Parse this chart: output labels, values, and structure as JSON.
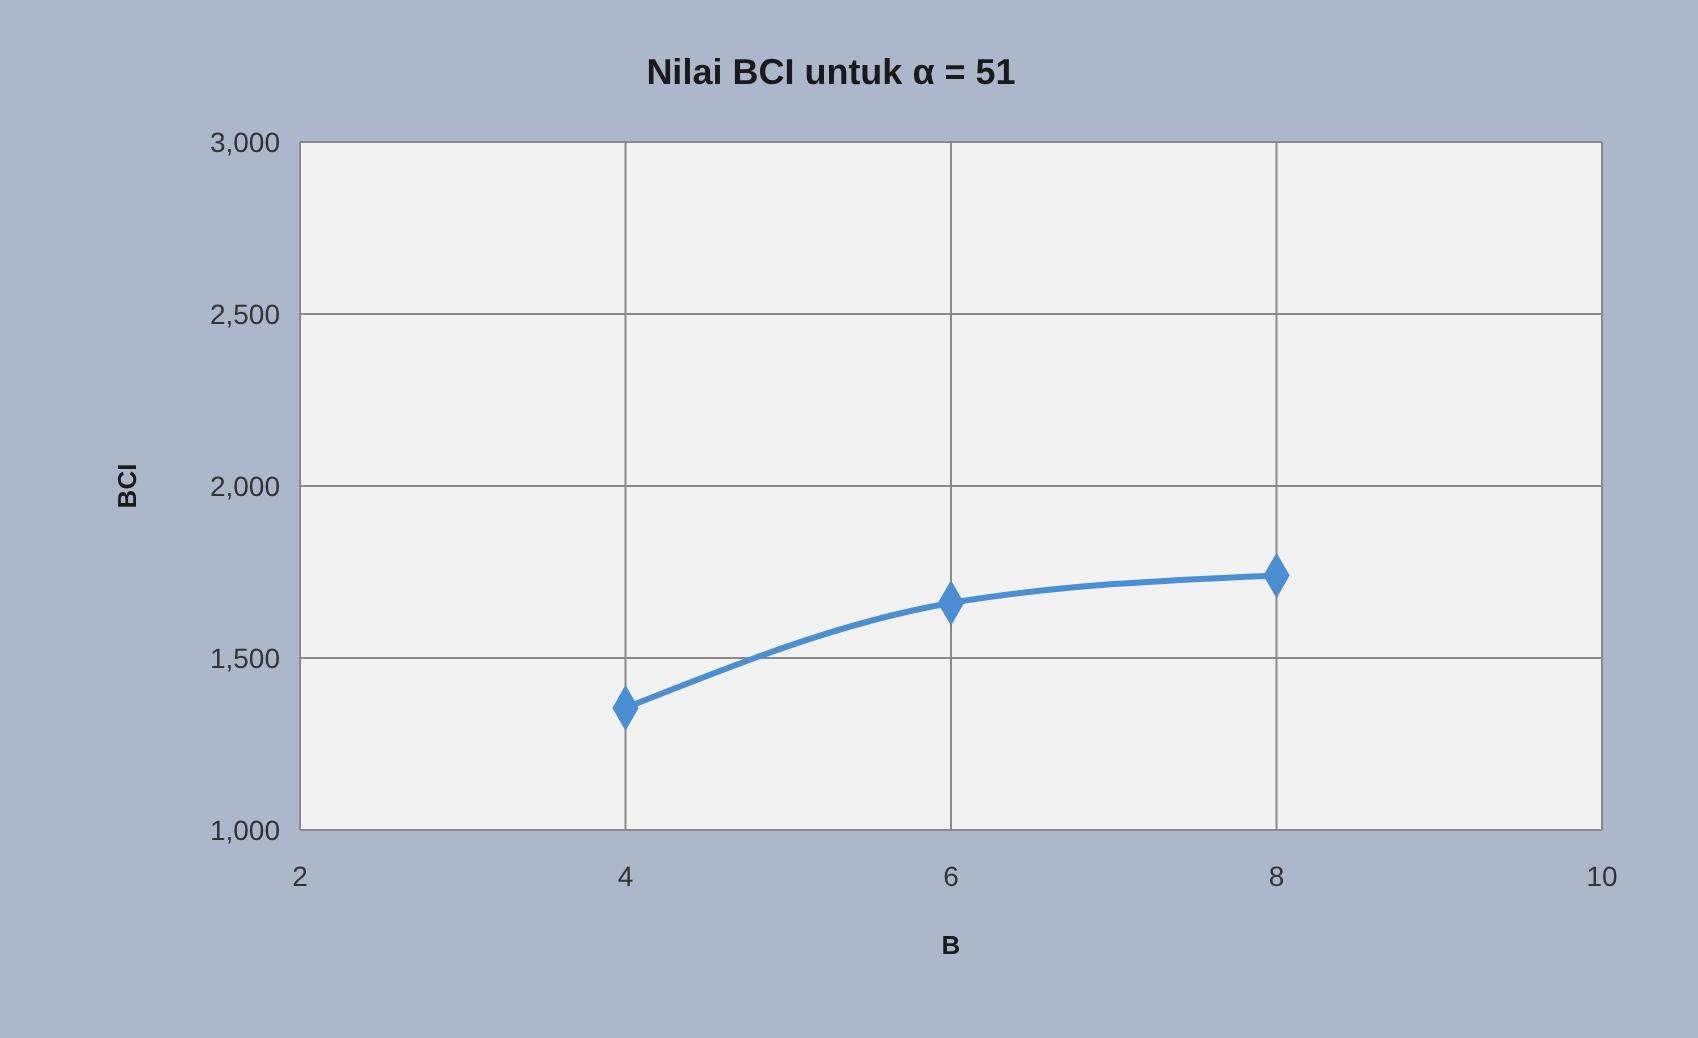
{
  "chart_data": {
    "type": "line",
    "title": "Nilai BCI untuk α = 51",
    "xlabel": "B",
    "ylabel": "BCI",
    "x": [
      4,
      6,
      8
    ],
    "series": [
      {
        "color": "#4a8ed4",
        "values": [
          1355,
          1660,
          1740
        ]
      }
    ],
    "xlim": [
      2,
      10
    ],
    "xticks": [
      2,
      4,
      6,
      8,
      10
    ],
    "ylim": [
      1000,
      3000
    ],
    "yticks": [
      {
        "value": 1000,
        "label": "1,000"
      },
      {
        "value": 1500,
        "label": "1,500"
      },
      {
        "value": 2000,
        "label": "2,000"
      },
      {
        "value": 2500,
        "label": "2,500"
      },
      {
        "value": 3000,
        "label": "3,000"
      }
    ],
    "grid": true,
    "marker": "diamond",
    "line_style": "solid"
  }
}
